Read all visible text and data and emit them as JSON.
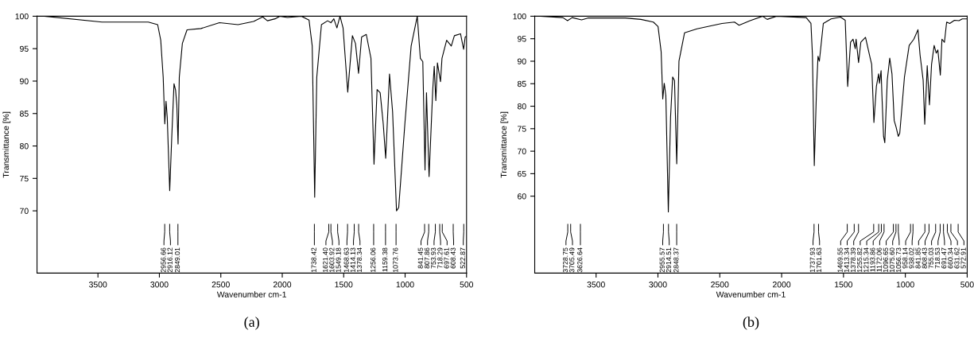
{
  "chart_data": [
    {
      "type": "line",
      "title": "(a)",
      "xlabel": "Wavenumber cm-1",
      "ylabel": "Transmittance [%]",
      "xlim": [
        3996,
        500
      ],
      "ylim": [
        60.4,
        100
      ],
      "xticks": [
        3500,
        3000,
        2500,
        2000,
        1500,
        1000,
        500
      ],
      "yticks": [
        70,
        75,
        80,
        85,
        90,
        95,
        100
      ],
      "grid": false,
      "marker": "none",
      "line_style": "solid",
      "series": [
        {
          "color": "#000000",
          "x": [
            3933,
            3467,
            3090,
            3014,
            2989,
            2969,
            2956,
            2946,
            2936,
            2916,
            2899,
            2881,
            2868,
            2858,
            2848,
            2838,
            2813,
            2775,
            2662,
            2511,
            2360,
            2234,
            2159,
            2121,
            2058,
            2020,
            1958,
            1844,
            1782,
            1756,
            1736,
            1719,
            1681,
            1631,
            1604,
            1580,
            1555,
            1530,
            1505,
            1467,
            1429,
            1404,
            1379,
            1354,
            1316,
            1278,
            1253,
            1228,
            1203,
            1178,
            1158,
            1127,
            1102,
            1070,
            1052,
            1002,
            951,
            901,
            876,
            856,
            838,
            826,
            805,
            775,
            763,
            750,
            737,
            712,
            700,
            662,
            624,
            599,
            549,
            524,
            511,
            503
          ],
          "values": [
            100,
            99.1,
            99.1,
            98.7,
            96.3,
            90.6,
            83.4,
            86.9,
            84.4,
            73.1,
            81.5,
            89.6,
            88.6,
            86.3,
            80.3,
            90.6,
            95.8,
            97.9,
            98.1,
            99.0,
            98.7,
            99.2,
            99.9,
            99.3,
            99.6,
            100,
            99.8,
            100,
            99.4,
            95.4,
            72.1,
            90.6,
            98.7,
            99.3,
            99.0,
            99.6,
            98.2,
            100,
            98.2,
            88.3,
            97.0,
            95.8,
            91.2,
            96.8,
            97.2,
            93.5,
            77.2,
            88.7,
            88.2,
            83.4,
            78.1,
            91.1,
            85.3,
            70.0,
            70.5,
            83.4,
            95.4,
            100,
            93.5,
            93.0,
            76.3,
            88.2,
            75.3,
            88.7,
            92.3,
            87.0,
            92.8,
            89.9,
            93.5,
            96.3,
            95.4,
            97.0,
            97.3,
            94.9,
            96.8,
            96.9
          ]
        }
      ],
      "annotations": [
        {
          "text": "2956.66",
          "x": 2956.66
        },
        {
          "text": "2916.12",
          "x": 2916.12
        },
        {
          "text": "2849.01",
          "x": 2849.01
        },
        {
          "text": "1738.42",
          "x": 1738.42
        },
        {
          "text": "1621.40",
          "x": 1621.4
        },
        {
          "text": "1603.92",
          "x": 1603.92
        },
        {
          "text": "1549.18",
          "x": 1549.18
        },
        {
          "text": "1468.63",
          "x": 1468.63
        },
        {
          "text": "1414.13",
          "x": 1414.13
        },
        {
          "text": "1378.34",
          "x": 1378.34
        },
        {
          "text": "1256.06",
          "x": 1256.06
        },
        {
          "text": "1159.38",
          "x": 1159.38
        },
        {
          "text": "1073.76",
          "x": 1073.76
        },
        {
          "text": "841.45",
          "x": 841.45
        },
        {
          "text": "807.86",
          "x": 807.86
        },
        {
          "text": "753.93",
          "x": 753.93
        },
        {
          "text": "718.29",
          "x": 718.29
        },
        {
          "text": "697.61",
          "x": 697.61
        },
        {
          "text": "608.43",
          "x": 608.43
        },
        {
          "text": "522.87",
          "x": 522.87
        }
      ]
    },
    {
      "type": "line",
      "title": "(b)",
      "xlabel": "Wavenumber cm-1",
      "ylabel": "Transmittance [%]",
      "xlim": [
        3996,
        500
      ],
      "ylim": [
        42.9,
        100
      ],
      "xticks": [
        3500,
        3000,
        2500,
        2000,
        1500,
        1000,
        500
      ],
      "yticks": [
        60,
        65,
        70,
        75,
        80,
        85,
        90,
        95,
        100
      ],
      "grid": false,
      "marker": "none",
      "line_style": "solid",
      "series": [
        {
          "color": "#000000",
          "x": [
            3945,
            3768,
            3731,
            3693,
            3617,
            3567,
            3264,
            3138,
            3037,
            2999,
            2974,
            2961,
            2949,
            2936,
            2916,
            2898,
            2881,
            2866,
            2848,
            2830,
            2785,
            2684,
            2482,
            2381,
            2344,
            2255,
            2154,
            2117,
            2041,
            1801,
            1763,
            1751,
            1736,
            1718,
            1706,
            1695,
            1663,
            1600,
            1524,
            1486,
            1466,
            1443,
            1423,
            1405,
            1398,
            1378,
            1360,
            1322,
            1284,
            1272,
            1254,
            1234,
            1216,
            1209,
            1196,
            1189,
            1176,
            1166,
            1146,
            1126,
            1108,
            1090,
            1075,
            1057,
            1045,
            1007,
            969,
            931,
            898,
            881,
            856,
            843,
            823,
            805,
            788,
            767,
            750,
            737,
            717,
            704,
            684,
            666,
            641,
            603,
            566,
            540,
            502
          ],
          "values": [
            100,
            99.7,
            99.0,
            99.7,
            99.2,
            99.6,
            99.6,
            99.3,
            98.7,
            97.7,
            92.1,
            81.6,
            85.1,
            82.3,
            56.5,
            77.5,
            86.5,
            85.7,
            67.2,
            90.0,
            96.3,
            97.2,
            98.4,
            98.7,
            98.0,
            99.0,
            100,
            99.3,
            100,
            99.7,
            98.4,
            91.4,
            66.8,
            83.7,
            91.1,
            90.0,
            98.4,
            99.4,
            99.8,
            99.1,
            84.4,
            94.2,
            94.9,
            92.8,
            94.9,
            89.7,
            94.2,
            95.3,
            90.7,
            89.3,
            76.4,
            84.4,
            87.2,
            85.1,
            87.9,
            82.3,
            73.3,
            71.9,
            85.8,
            90.7,
            87.2,
            76.8,
            75.4,
            73.3,
            74.0,
            86.5,
            93.5,
            94.9,
            97.0,
            91.4,
            85.8,
            76.0,
            89.0,
            80.3,
            89.3,
            93.5,
            91.8,
            92.5,
            86.9,
            94.9,
            94.2,
            98.7,
            98.4,
            99.1,
            99.0,
            99.4,
            99.4
          ]
        }
      ],
      "annotations": [
        {
          "text": "3728.75",
          "x": 3728.75
        },
        {
          "text": "3705.49",
          "x": 3705.49
        },
        {
          "text": "3626.64",
          "x": 3626.64
        },
        {
          "text": "2955.57",
          "x": 2955.57
        },
        {
          "text": "2914.51",
          "x": 2914.51
        },
        {
          "text": "2848.37",
          "x": 2848.37
        },
        {
          "text": "1737.93",
          "x": 1737.93
        },
        {
          "text": "1701.63",
          "x": 1701.63
        },
        {
          "text": "1469.55",
          "x": 1469.55
        },
        {
          "text": "1413.34",
          "x": 1413.34
        },
        {
          "text": "1378.39",
          "x": 1378.39
        },
        {
          "text": "1255.82",
          "x": 1255.82
        },
        {
          "text": "1215.34",
          "x": 1215.34
        },
        {
          "text": "1193.86",
          "x": 1193.86
        },
        {
          "text": "1172.06",
          "x": 1172.06
        },
        {
          "text": "1096.65",
          "x": 1096.65
        },
        {
          "text": "1075.60",
          "x": 1075.6
        },
        {
          "text": "1056.73",
          "x": 1056.73
        },
        {
          "text": "958.14",
          "x": 958.14
        },
        {
          "text": "938.02",
          "x": 938.02
        },
        {
          "text": "841.85",
          "x": 841.85
        },
        {
          "text": "808.43",
          "x": 808.43
        },
        {
          "text": "755.03",
          "x": 755.03
        },
        {
          "text": "718.53",
          "x": 718.53
        },
        {
          "text": "691.47",
          "x": 691.47
        },
        {
          "text": "660.34",
          "x": 660.34
        },
        {
          "text": "631.62",
          "x": 631.62
        },
        {
          "text": "572.91",
          "x": 572.91
        }
      ]
    }
  ]
}
